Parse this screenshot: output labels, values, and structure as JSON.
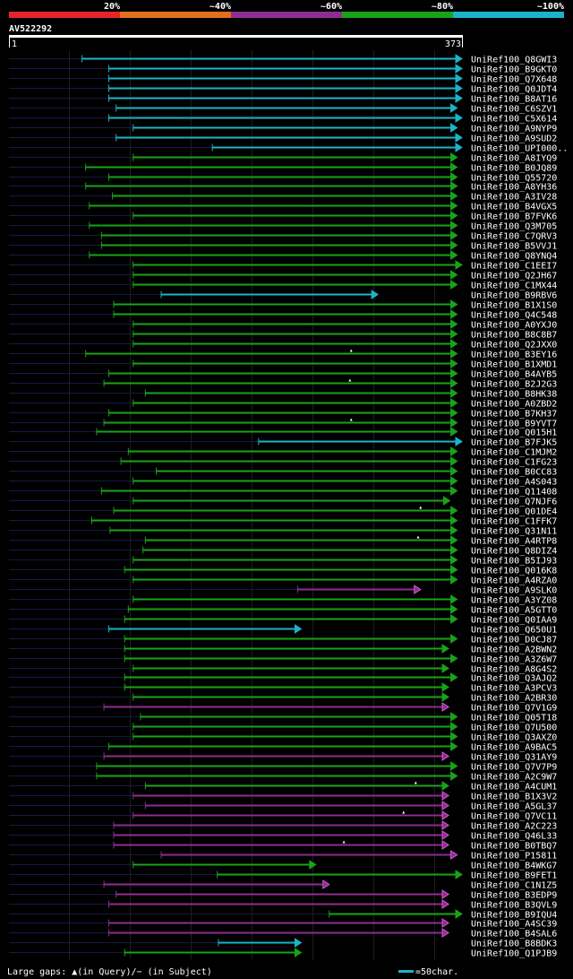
{
  "query_id": "AV522292",
  "query_start": "1",
  "query_end": "373",
  "query_length": 373,
  "legend": [
    {
      "label": "20%",
      "color": "#e8242b"
    },
    {
      "label": "~40%",
      "color": "#e0701c"
    },
    {
      "label": "~60%",
      "color": "#8e2d91"
    },
    {
      "label": "~80%",
      "color": "#19a319"
    },
    {
      "label": "~100%",
      "color": "#1cb3c8"
    }
  ],
  "footer": {
    "gaps_text": "Large gaps: ▲(in Query)/− (in Subject)",
    "scale_text": "=50char.",
    "scale_color": "#1cb3c8"
  },
  "chart_data": {
    "type": "alignment-overview",
    "x_unit": "query position",
    "xlim": [
      1,
      373
    ],
    "grid_step": 50,
    "hits": [
      {
        "id": "UniRef100_Q8GWI3",
        "start": 61,
        "end": 373,
        "color": "#1cb3c8",
        "cap": "#1cb3c8",
        "gap": null
      },
      {
        "id": "UniRef100_B9GKT0",
        "start": 83,
        "end": 373,
        "color": "#1cb3c8",
        "cap": "#1cb3c8",
        "gap": null
      },
      {
        "id": "UniRef100_Q7X648",
        "start": 83,
        "end": 373,
        "color": "#1cb3c8",
        "cap": "#1cb3c8",
        "gap": null
      },
      {
        "id": "UniRef100_Q0JDT4",
        "start": 83,
        "end": 373,
        "color": "#1cb3c8",
        "cap": "#1cb3c8",
        "gap": null
      },
      {
        "id": "UniRef100_B8AT16",
        "start": 83,
        "end": 373,
        "color": "#1cb3c8",
        "cap": "#1cb3c8",
        "gap": null
      },
      {
        "id": "UniRef100_C6SZV1",
        "start": 89,
        "end": 369,
        "color": "#1cb3c8",
        "cap": "#1cb3c8",
        "gap": null
      },
      {
        "id": "UniRef100_C5X614",
        "start": 83,
        "end": 373,
        "color": "#1cb3c8",
        "cap": "#1cb3c8",
        "gap": null
      },
      {
        "id": "UniRef100_A9NYP9",
        "start": 103,
        "end": 369,
        "color": "#1cb3c8",
        "cap": "#1cb3c8",
        "gap": null
      },
      {
        "id": "UniRef100_A9SUD2",
        "start": 89,
        "end": 373,
        "color": "#1cb3c8",
        "cap": "#1cb3c8",
        "gap": null
      },
      {
        "id": "UniRef100_UPI000..",
        "start": 168,
        "end": 373,
        "color": "#1cb3c8",
        "cap": "#1cb3c8",
        "gap": null
      },
      {
        "id": "UniRef100_A8IYQ9",
        "start": 103,
        "end": 369,
        "color": "#19a319",
        "cap": "#19a319",
        "gap": null
      },
      {
        "id": "UniRef100_B0JQ89",
        "start": 64,
        "end": 369,
        "color": "#19a319",
        "cap": "#19a319",
        "gap": null
      },
      {
        "id": "UniRef100_Q55720",
        "start": 83,
        "end": 369,
        "color": "#19a319",
        "cap": "#19a319",
        "gap": null
      },
      {
        "id": "UniRef100_A8YH36",
        "start": 64,
        "end": 369,
        "color": "#19a319",
        "cap": "#19a319",
        "gap": null
      },
      {
        "id": "UniRef100_A3IV28",
        "start": 86,
        "end": 369,
        "color": "#19a319",
        "cap": "#19a319",
        "gap": null
      },
      {
        "id": "UniRef100_B4VGX5",
        "start": 67,
        "end": 369,
        "color": "#19a319",
        "cap": "#19a319",
        "gap": null
      },
      {
        "id": "UniRef100_B7FVK6",
        "start": 103,
        "end": 369,
        "color": "#19a319",
        "cap": "#19a319",
        "gap": null
      },
      {
        "id": "UniRef100_Q3M705",
        "start": 67,
        "end": 369,
        "color": "#19a319",
        "cap": "#19a319",
        "gap": null
      },
      {
        "id": "UniRef100_C7QRV3",
        "start": 77,
        "end": 369,
        "color": "#19a319",
        "cap": "#19a319",
        "gap": null
      },
      {
        "id": "UniRef100_B5VVJ1",
        "start": 77,
        "end": 369,
        "color": "#19a319",
        "cap": "#19a319",
        "gap": null
      },
      {
        "id": "UniRef100_Q8YNQ4",
        "start": 67,
        "end": 369,
        "color": "#19a319",
        "cap": "#19a319",
        "gap": null
      },
      {
        "id": "UniRef100_C1EEI7",
        "start": 103,
        "end": 373,
        "color": "#19a319",
        "cap": "#19a319",
        "gap": null
      },
      {
        "id": "UniRef100_Q2JH67",
        "start": 103,
        "end": 369,
        "color": "#19a319",
        "cap": "#19a319",
        "gap": null
      },
      {
        "id": "UniRef100_C1MX44",
        "start": 103,
        "end": 369,
        "color": "#19a319",
        "cap": "#19a319",
        "gap": null
      },
      {
        "id": "UniRef100_B9RBV6",
        "start": 126,
        "end": 304,
        "color": "#1cb3c8",
        "cap": "#1cb3c8",
        "gap": null
      },
      {
        "id": "UniRef100_B1X1S0",
        "start": 87,
        "end": 369,
        "color": "#19a319",
        "cap": "#19a319",
        "gap": null
      },
      {
        "id": "UniRef100_Q4C548",
        "start": 87,
        "end": 369,
        "color": "#19a319",
        "cap": "#19a319",
        "gap": null
      },
      {
        "id": "UniRef100_A0YXJ0",
        "start": 103,
        "end": 369,
        "color": "#19a319",
        "cap": "#19a319",
        "gap": null
      },
      {
        "id": "UniRef100_B8C8B7",
        "start": 103,
        "end": 369,
        "color": "#19a319",
        "cap": "#19a319",
        "gap": null
      },
      {
        "id": "UniRef100_Q2JXX0",
        "start": 103,
        "end": 369,
        "color": "#19a319",
        "cap": "#19a319",
        "gap": null
      },
      {
        "id": "UniRef100_B3EY16",
        "start": 64,
        "end": 369,
        "color": "#19a319",
        "cap": "#19a319",
        "gap": 282
      },
      {
        "id": "UniRef100_B1XMD1",
        "start": 103,
        "end": 369,
        "color": "#19a319",
        "cap": "#19a319",
        "gap": null
      },
      {
        "id": "UniRef100_B4AYB5",
        "start": 83,
        "end": 369,
        "color": "#19a319",
        "cap": "#19a319",
        "gap": null
      },
      {
        "id": "UniRef100_B2J2G3",
        "start": 79,
        "end": 369,
        "color": "#19a319",
        "cap": "#19a319",
        "gap": 281
      },
      {
        "id": "UniRef100_B8HK38",
        "start": 113,
        "end": 369,
        "color": "#19a319",
        "cap": "#19a319",
        "gap": null
      },
      {
        "id": "UniRef100_A0ZBD2",
        "start": 103,
        "end": 369,
        "color": "#19a319",
        "cap": "#19a319",
        "gap": null
      },
      {
        "id": "UniRef100_B7KH37",
        "start": 83,
        "end": 369,
        "color": "#19a319",
        "cap": "#19a319",
        "gap": null
      },
      {
        "id": "UniRef100_B9YVT7",
        "start": 79,
        "end": 369,
        "color": "#19a319",
        "cap": "#19a319",
        "gap": 282
      },
      {
        "id": "UniRef100_Q015H1",
        "start": 73,
        "end": 369,
        "color": "#19a319",
        "cap": "#19a319",
        "gap": null
      },
      {
        "id": "UniRef100_B7FJK5",
        "start": 206,
        "end": 373,
        "color": "#1cb3c8",
        "cap": "#1cb3c8",
        "gap": null
      },
      {
        "id": "UniRef100_C1MJM2",
        "start": 99,
        "end": 369,
        "color": "#19a319",
        "cap": "#19a319",
        "gap": null
      },
      {
        "id": "UniRef100_C1FG23",
        "start": 93,
        "end": 369,
        "color": "#19a319",
        "cap": "#19a319",
        "gap": null
      },
      {
        "id": "UniRef100_B0CC83",
        "start": 122,
        "end": 369,
        "color": "#19a319",
        "cap": "#19a319",
        "gap": null
      },
      {
        "id": "UniRef100_A4S043",
        "start": 103,
        "end": 369,
        "color": "#19a319",
        "cap": "#19a319",
        "gap": null
      },
      {
        "id": "UniRef100_Q11408",
        "start": 77,
        "end": 369,
        "color": "#19a319",
        "cap": "#19a319",
        "gap": null
      },
      {
        "id": "UniRef100_Q7NJF6",
        "start": 103,
        "end": 363,
        "color": "#19a319",
        "cap": "#19a319",
        "gap": null
      },
      {
        "id": "UniRef100_Q01DE4",
        "start": 87,
        "end": 369,
        "color": "#19a319",
        "cap": "#19a319",
        "gap": 339
      },
      {
        "id": "UniRef100_C1FFK7",
        "start": 69,
        "end": 369,
        "color": "#19a319",
        "cap": "#19a319",
        "gap": null
      },
      {
        "id": "UniRef100_Q31N11",
        "start": 84,
        "end": 369,
        "color": "#19a319",
        "cap": "#19a319",
        "gap": null
      },
      {
        "id": "UniRef100_A4RTP8",
        "start": 113,
        "end": 369,
        "color": "#19a319",
        "cap": "#19a319",
        "gap": 337
      },
      {
        "id": "UniRef100_Q8DIZ4",
        "start": 111,
        "end": 369,
        "color": "#19a319",
        "cap": "#19a319",
        "gap": null
      },
      {
        "id": "UniRef100_B5IJ93",
        "start": 103,
        "end": 369,
        "color": "#19a319",
        "cap": "#19a319",
        "gap": null
      },
      {
        "id": "UniRef100_Q016K8",
        "start": 96,
        "end": 369,
        "color": "#19a319",
        "cap": "#19a319",
        "gap": null
      },
      {
        "id": "UniRef100_A4RZA0",
        "start": 103,
        "end": 369,
        "color": "#19a319",
        "cap": "#19a319",
        "gap": null
      },
      {
        "id": "UniRef100_A9SLK0",
        "start": 238,
        "end": 339,
        "color": "#8e2d91",
        "cap": "#d85ad8",
        "gap": null
      },
      {
        "id": "UniRef100_A3YZ08",
        "start": 103,
        "end": 369,
        "color": "#19a319",
        "cap": "#19a319",
        "gap": null
      },
      {
        "id": "UniRef100_A5GTT0",
        "start": 99,
        "end": 369,
        "color": "#19a319",
        "cap": "#19a319",
        "gap": null
      },
      {
        "id": "UniRef100_Q0IAA9",
        "start": 96,
        "end": 369,
        "color": "#19a319",
        "cap": "#19a319",
        "gap": null
      },
      {
        "id": "UniRef100_Q650U1",
        "start": 83,
        "end": 241,
        "color": "#1cb3c8",
        "cap": "#1cb3c8",
        "gap": null
      },
      {
        "id": "UniRef100_D0CJ87",
        "start": 96,
        "end": 369,
        "color": "#19a319",
        "cap": "#19a319",
        "gap": null
      },
      {
        "id": "UniRef100_A2BWN2",
        "start": 96,
        "end": 362,
        "color": "#19a319",
        "cap": "#19a319",
        "gap": null
      },
      {
        "id": "UniRef100_A3Z6W7",
        "start": 96,
        "end": 369,
        "color": "#19a319",
        "cap": "#19a319",
        "gap": null
      },
      {
        "id": "UniRef100_A8G4S2",
        "start": 103,
        "end": 362,
        "color": "#19a319",
        "cap": "#19a319",
        "gap": null
      },
      {
        "id": "UniRef100_Q3AJQ2",
        "start": 96,
        "end": 369,
        "color": "#19a319",
        "cap": "#19a319",
        "gap": null
      },
      {
        "id": "UniRef100_A3PCV3",
        "start": 96,
        "end": 362,
        "color": "#19a319",
        "cap": "#19a319",
        "gap": null
      },
      {
        "id": "UniRef100_A2BR30",
        "start": 103,
        "end": 362,
        "color": "#19a319",
        "cap": "#19a319",
        "gap": null
      },
      {
        "id": "UniRef100_Q7V1G9",
        "start": 79,
        "end": 362,
        "color": "#8e2d91",
        "cap": "#d85ad8",
        "gap": null
      },
      {
        "id": "UniRef100_Q05T18",
        "start": 109,
        "end": 369,
        "color": "#19a319",
        "cap": "#19a319",
        "gap": null
      },
      {
        "id": "UniRef100_Q7U500",
        "start": 103,
        "end": 369,
        "color": "#19a319",
        "cap": "#19a319",
        "gap": null
      },
      {
        "id": "UniRef100_Q3AXZ0",
        "start": 103,
        "end": 369,
        "color": "#19a319",
        "cap": "#19a319",
        "gap": null
      },
      {
        "id": "UniRef100_A9BAC5",
        "start": 83,
        "end": 369,
        "color": "#19a319",
        "cap": "#19a319",
        "gap": null
      },
      {
        "id": "UniRef100_Q31AY9",
        "start": 79,
        "end": 362,
        "color": "#8e2d91",
        "cap": "#d85ad8",
        "gap": null
      },
      {
        "id": "UniRef100_Q7V7P9",
        "start": 73,
        "end": 369,
        "color": "#19a319",
        "cap": "#19a319",
        "gap": null
      },
      {
        "id": "UniRef100_A2C9W7",
        "start": 73,
        "end": 369,
        "color": "#19a319",
        "cap": "#19a319",
        "gap": null
      },
      {
        "id": "UniRef100_A4CUM1",
        "start": 113,
        "end": 362,
        "color": "#19a319",
        "cap": "#19a319",
        "gap": 335
      },
      {
        "id": "UniRef100_B1X3V2",
        "start": 103,
        "end": 362,
        "color": "#8e2d91",
        "cap": "#d85ad8",
        "gap": null
      },
      {
        "id": "UniRef100_A5GL37",
        "start": 113,
        "end": 362,
        "color": "#8e2d91",
        "cap": "#d85ad8",
        "gap": null
      },
      {
        "id": "UniRef100_Q7VC11",
        "start": 103,
        "end": 362,
        "color": "#8e2d91",
        "cap": "#d85ad8",
        "gap": 325
      },
      {
        "id": "UniRef100_A2C223",
        "start": 87,
        "end": 362,
        "color": "#8e2d91",
        "cap": "#d85ad8",
        "gap": null
      },
      {
        "id": "UniRef100_Q46L33",
        "start": 87,
        "end": 362,
        "color": "#8e2d91",
        "cap": "#d85ad8",
        "gap": null
      },
      {
        "id": "UniRef100_B0TBQ7",
        "start": 87,
        "end": 362,
        "color": "#8e2d91",
        "cap": "#d85ad8",
        "gap": 276
      },
      {
        "id": "UniRef100_P15811",
        "start": 126,
        "end": 369,
        "color": "#8e2d91",
        "cap": "#d85ad8",
        "gap": null
      },
      {
        "id": "UniRef100_B4WKG7",
        "start": 103,
        "end": 253,
        "color": "#19a319",
        "cap": "#19a319",
        "gap": null
      },
      {
        "id": "UniRef100_B9FET1",
        "start": 172,
        "end": 373,
        "color": "#19a319",
        "cap": "#19a319",
        "gap": null
      },
      {
        "id": "UniRef100_C1N1Z5",
        "start": 79,
        "end": 264,
        "color": "#8e2d91",
        "cap": "#d85ad8",
        "gap": null
      },
      {
        "id": "UniRef100_B3EDP9",
        "start": 89,
        "end": 362,
        "color": "#8e2d91",
        "cap": "#d85ad8",
        "gap": null
      },
      {
        "id": "UniRef100_B3QVL9",
        "start": 83,
        "end": 362,
        "color": "#8e2d91",
        "cap": "#d85ad8",
        "gap": null
      },
      {
        "id": "UniRef100_B9IQU4",
        "start": 264,
        "end": 373,
        "color": "#19a319",
        "cap": "#19a319",
        "gap": null
      },
      {
        "id": "UniRef100_A4SC39",
        "start": 83,
        "end": 362,
        "color": "#8e2d91",
        "cap": "#d85ad8",
        "gap": null
      },
      {
        "id": "UniRef100_B4SAL6",
        "start": 83,
        "end": 362,
        "color": "#8e2d91",
        "cap": "#d85ad8",
        "gap": null
      },
      {
        "id": "UniRef100_B8BDK3",
        "start": 173,
        "end": 241,
        "color": "#1cb3c8",
        "cap": "#1cb3c8",
        "gap": null
      },
      {
        "id": "UniRef100_Q1PJB9",
        "start": 96,
        "end": 241,
        "color": "#19a319",
        "cap": "#19a319",
        "gap": null
      }
    ]
  }
}
